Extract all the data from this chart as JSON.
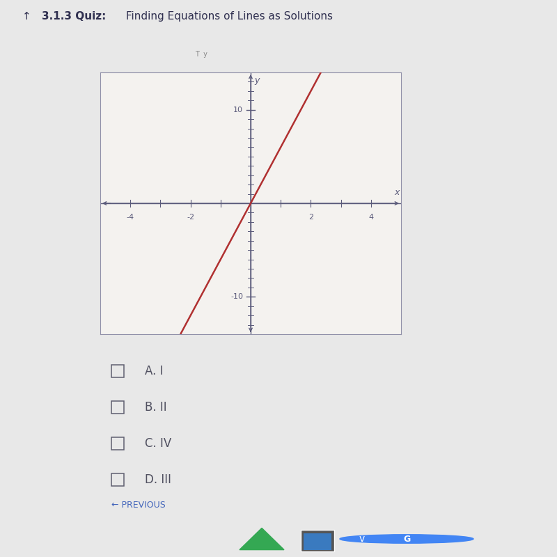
{
  "title_arrow": "↑",
  "title_bold": "3.1.3 Quiz:",
  "title_rest": " Finding Equations of Lines as Solutions",
  "slope": 6,
  "xlim": [
    -5,
    5
  ],
  "ylim": [
    -14,
    14
  ],
  "xticks": [
    -4,
    -3,
    -2,
    -1,
    1,
    2,
    3,
    4
  ],
  "xticks_labeled": [
    -4,
    -2,
    2,
    4
  ],
  "yticks_labeled": [
    -10,
    10
  ],
  "line_color": "#b03030",
  "line_width": 1.8,
  "axis_color": "#5a5a7a",
  "tick_color": "#5a5a7a",
  "bg_color": "#e8e8e8",
  "plot_bg_color": "#f4f2ef",
  "border_color": "#9090a8",
  "options": [
    "A. I",
    "B. II",
    "C. IV",
    "D. III"
  ],
  "prev_text": "← PREVIOUS",
  "checkbox_color": "#606070",
  "text_color": "#505060",
  "title_color": "#303050",
  "taskbar_color": "#5a5a5a",
  "header_bg": "#dcdcdc",
  "bottom_bar_color": "#9a9a9a"
}
